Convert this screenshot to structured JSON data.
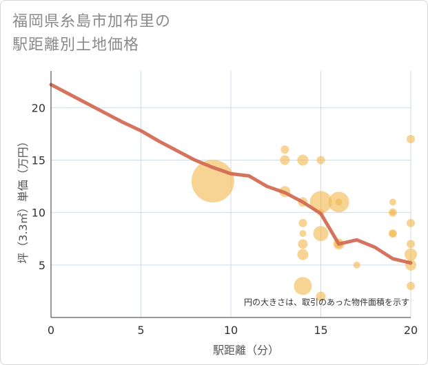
{
  "title_lines": [
    "福岡県糸島市加布里の",
    "駅距離別土地価格"
  ],
  "chart_data": {
    "type": "scatter",
    "title": "福岡県糸島市加布里の駅距離別土地価格",
    "xlabel": "駅距離（分）",
    "ylabel": "坪（3.3㎡）単価（万円）",
    "xlim": [
      0,
      20
    ],
    "ylim": [
      0,
      23.5
    ],
    "x_ticks": [
      0,
      5,
      10,
      15,
      20
    ],
    "y_ticks": [
      5,
      10,
      15,
      20
    ],
    "grid": true,
    "annotation": "円の大きさは、取引のあった物件面積を示す",
    "colors": {
      "bubble": "#f2b84b",
      "line": "#d46b55",
      "grid": "#cfdbe6",
      "axis": "#333333"
    },
    "bubbles": [
      {
        "x": 9,
        "y": 13,
        "size": 31
      },
      {
        "x": 13,
        "y": 16,
        "size": 6
      },
      {
        "x": 13,
        "y": 15,
        "size": 7
      },
      {
        "x": 13,
        "y": 12,
        "size": 8
      },
      {
        "x": 14,
        "y": 15,
        "size": 8
      },
      {
        "x": 14,
        "y": 11,
        "size": 7
      },
      {
        "x": 14,
        "y": 9,
        "size": 6
      },
      {
        "x": 14,
        "y": 8,
        "size": 5
      },
      {
        "x": 14,
        "y": 7,
        "size": 7
      },
      {
        "x": 14,
        "y": 6,
        "size": 8
      },
      {
        "x": 14,
        "y": 3,
        "size": 13
      },
      {
        "x": 15,
        "y": 15,
        "size": 6
      },
      {
        "x": 15,
        "y": 11,
        "size": 16
      },
      {
        "x": 15,
        "y": 10,
        "size": 5
      },
      {
        "x": 15,
        "y": 8,
        "size": 11
      },
      {
        "x": 15,
        "y": 2,
        "size": 7
      },
      {
        "x": 16,
        "y": 11,
        "size": 15
      },
      {
        "x": 16,
        "y": 11,
        "size": 5
      },
      {
        "x": 16,
        "y": 7,
        "size": 8
      },
      {
        "x": 16,
        "y": 7,
        "size": 6
      },
      {
        "x": 17,
        "y": 5,
        "size": 5
      },
      {
        "x": 19,
        "y": 11,
        "size": 5
      },
      {
        "x": 19,
        "y": 10,
        "size": 6
      },
      {
        "x": 19,
        "y": 10,
        "size": 4
      },
      {
        "x": 19,
        "y": 8,
        "size": 6
      },
      {
        "x": 19,
        "y": 8,
        "size": 5
      },
      {
        "x": 20,
        "y": 17,
        "size": 6
      },
      {
        "x": 20,
        "y": 9,
        "size": 6
      },
      {
        "x": 20,
        "y": 7,
        "size": 6
      },
      {
        "x": 20,
        "y": 6,
        "size": 9
      },
      {
        "x": 20,
        "y": 5,
        "size": 8
      },
      {
        "x": 20,
        "y": 3,
        "size": 6
      }
    ],
    "trend_line": {
      "x": [
        0,
        1,
        2,
        3,
        4,
        5,
        6,
        7,
        8,
        9,
        10,
        11,
        12,
        13,
        14,
        15,
        16,
        17,
        18,
        19,
        20
      ],
      "y": [
        22.2,
        21.3,
        20.4,
        19.5,
        18.6,
        17.8,
        16.8,
        15.9,
        15.0,
        14.3,
        13.7,
        13.5,
        12.5,
        11.9,
        11.0,
        9.9,
        7.0,
        7.4,
        6.7,
        5.6,
        5.2
      ]
    }
  }
}
